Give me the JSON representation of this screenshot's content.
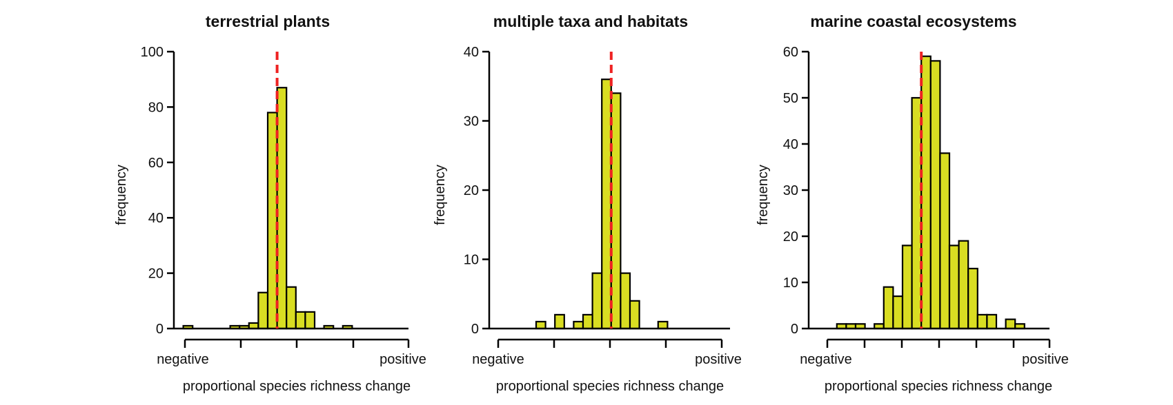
{
  "chart_data": [
    {
      "type": "bar",
      "title": "terrestrial plants",
      "xlabel": "proportional species richness change",
      "ylabel": "frequency",
      "x_end_labels": [
        "negative",
        "positive"
      ],
      "bins": 20,
      "values": [
        0,
        1,
        0,
        0,
        0,
        0,
        1,
        1,
        2,
        13,
        78,
        87,
        15,
        6,
        6,
        0,
        1,
        0,
        1,
        0
      ],
      "ylim": [
        0,
        100
      ],
      "yticks": [
        0,
        20,
        40,
        60,
        80,
        100
      ],
      "bar_color": "#d9dd22",
      "ref_line_color": "#ee2222",
      "ref_line_bin": 11,
      "grid": false
    },
    {
      "type": "bar",
      "title": "multiple taxa and habitats",
      "xlabel": "proportional species richness change",
      "ylabel": "frequency",
      "x_end_labels": [
        "negative",
        "positive"
      ],
      "bins": 20,
      "values": [
        0,
        0,
        0,
        0,
        0,
        1,
        0,
        2,
        0,
        1,
        2,
        8,
        36,
        34,
        8,
        4,
        0,
        0,
        1,
        0
      ],
      "ylim": [
        0,
        40
      ],
      "yticks": [
        0,
        10,
        20,
        30,
        40
      ],
      "bar_color": "#d9dd22",
      "ref_line_color": "#ee2222",
      "ref_line_bin": 13,
      "grid": false
    },
    {
      "type": "bar",
      "title": "marine coastal ecosystems",
      "xlabel": "proportional species richness change",
      "ylabel": "frequency",
      "x_end_labels": [
        "negative",
        "positive"
      ],
      "bins": 24,
      "values": [
        0,
        0,
        0,
        1,
        1,
        1,
        0,
        1,
        9,
        7,
        18,
        50,
        59,
        58,
        38,
        18,
        19,
        13,
        3,
        3,
        0,
        2,
        1,
        0
      ],
      "ylim": [
        0,
        60
      ],
      "yticks": [
        0,
        10,
        20,
        30,
        40,
        50,
        60
      ],
      "bar_color": "#d9dd22",
      "ref_line_color": "#ee2222",
      "ref_line_bin": 12,
      "grid": false
    }
  ]
}
